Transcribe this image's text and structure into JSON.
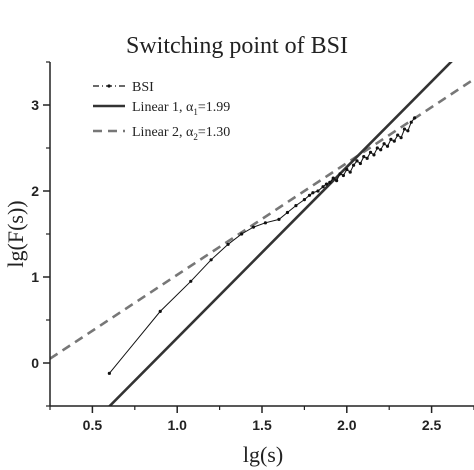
{
  "chart_data": {
    "type": "line",
    "title": "Switching point of BSI",
    "xlabel": "lg(s)",
    "ylabel": "lg(F(s))",
    "xlim": [
      0.25,
      2.75
    ],
    "ylim": [
      -0.5,
      3.5
    ],
    "xticks": [
      "0.5",
      "1.0",
      "1.5",
      "2.0",
      "2.5"
    ],
    "xtick_values": [
      0.5,
      1.0,
      1.5,
      2.0,
      2.5
    ],
    "yticks": [
      "0",
      "1",
      "2",
      "3"
    ],
    "ytick_values": [
      0,
      1,
      2,
      3
    ],
    "legend_position": "top-left",
    "grid": false,
    "series": [
      {
        "name": "BSI",
        "legend_label": "BSI",
        "style": "dash-dot with small point markers",
        "color": "#111111",
        "x": [
          0.6,
          0.9,
          1.08,
          1.2,
          1.3,
          1.38,
          1.45,
          1.52,
          1.6,
          1.65,
          1.7,
          1.75,
          1.78,
          1.8,
          1.83,
          1.86,
          1.88,
          1.9,
          1.92,
          1.94,
          1.96,
          1.98,
          2.0,
          2.02,
          2.04,
          2.06,
          2.08,
          2.1,
          2.12,
          2.14,
          2.16,
          2.18,
          2.2,
          2.22,
          2.24,
          2.26,
          2.28,
          2.3,
          2.32,
          2.34,
          2.36,
          2.38,
          2.4
        ],
        "y": [
          -0.12,
          0.6,
          0.95,
          1.2,
          1.38,
          1.5,
          1.58,
          1.63,
          1.67,
          1.75,
          1.83,
          1.9,
          1.95,
          1.98,
          2.0,
          2.05,
          2.08,
          2.1,
          2.15,
          2.12,
          2.2,
          2.18,
          2.25,
          2.22,
          2.3,
          2.35,
          2.32,
          2.4,
          2.38,
          2.45,
          2.42,
          2.5,
          2.48,
          2.55,
          2.52,
          2.6,
          2.58,
          2.65,
          2.62,
          2.72,
          2.7,
          2.8,
          2.85
        ]
      },
      {
        "name": "Linear 1",
        "legend_label": "Linear 1, α",
        "legend_sub": "1",
        "legend_value": "=1.99",
        "style": "solid",
        "color": "#333333",
        "x": [
          0.25,
          2.75
        ],
        "y": [
          -1.2,
          3.77
        ]
      },
      {
        "name": "Linear 2",
        "legend_label": "Linear 2, α",
        "legend_sub": "2",
        "legend_value": "=1.30",
        "style": "dashed",
        "color": "#777777",
        "x": [
          0.25,
          2.75
        ],
        "y": [
          0.05,
          3.3
        ]
      }
    ]
  }
}
